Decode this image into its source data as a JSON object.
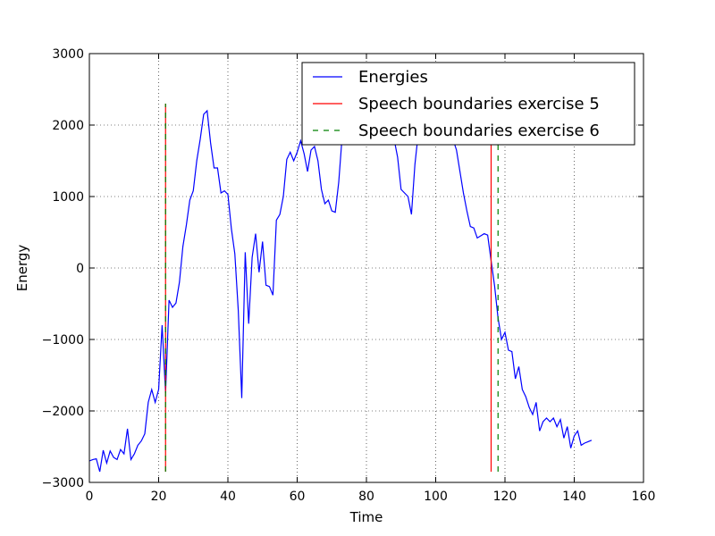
{
  "chart_data": {
    "type": "line",
    "xlabel": "Time",
    "ylabel": "Energy",
    "xlim": [
      0,
      160
    ],
    "ylim": [
      -3000,
      3000
    ],
    "xticks": [
      0,
      20,
      40,
      60,
      80,
      100,
      120,
      140,
      160
    ],
    "yticks": [
      -3000,
      -2000,
      -1000,
      0,
      1000,
      2000,
      3000
    ],
    "grid": true,
    "legend_position": "top-right",
    "colors": {
      "energies": "#0000ff",
      "boundary5": "#ff0000",
      "boundary6": "#008000"
    },
    "series": [
      {
        "name": "Energies",
        "x": [
          0,
          1,
          2,
          3,
          4,
          5,
          6,
          7,
          8,
          9,
          10,
          11,
          12,
          13,
          14,
          15,
          16,
          17,
          18,
          19,
          20,
          21,
          22,
          23,
          24,
          25,
          26,
          27,
          28,
          29,
          30,
          31,
          32,
          33,
          34,
          35,
          36,
          37,
          38,
          39,
          40,
          41,
          42,
          43,
          44,
          45,
          46,
          47,
          48,
          49,
          50,
          51,
          52,
          53,
          54,
          55,
          56,
          57,
          58,
          59,
          60,
          61,
          62,
          63,
          64,
          65,
          66,
          67,
          68,
          69,
          70,
          71,
          72,
          73,
          74,
          75,
          76,
          77,
          78,
          79,
          80,
          81,
          82,
          83,
          84,
          85,
          86,
          87,
          88,
          89,
          90,
          91,
          92,
          93,
          94,
          95,
          96,
          97,
          98,
          99,
          100,
          101,
          102,
          103,
          104,
          105,
          106,
          107,
          108,
          109,
          110,
          111,
          112,
          113,
          114,
          115,
          116,
          117,
          118,
          119,
          120,
          121,
          122,
          123,
          124,
          125,
          126,
          127,
          128,
          129,
          130,
          131,
          132,
          133,
          134,
          135,
          136,
          137,
          138,
          139,
          140,
          141,
          142,
          143,
          144,
          145
        ],
        "y": [
          -2700,
          -2680,
          -2670,
          -2850,
          -2550,
          -2730,
          -2560,
          -2650,
          -2680,
          -2540,
          -2600,
          -2250,
          -2680,
          -2600,
          -2480,
          -2420,
          -2320,
          -1880,
          -1700,
          -1880,
          -1700,
          -800,
          -1750,
          -450,
          -550,
          -490,
          -200,
          300,
          600,
          950,
          1080,
          1500,
          1800,
          2150,
          2200,
          1750,
          1400,
          1400,
          1050,
          1080,
          1030,
          550,
          200,
          -600,
          -1820,
          220,
          -780,
          150,
          480,
          -60,
          370,
          -240,
          -260,
          -380,
          670,
          750,
          1000,
          1520,
          1620,
          1500,
          1620,
          1780,
          1600,
          1350,
          1650,
          1700,
          1500,
          1100,
          900,
          950,
          800,
          780,
          1200,
          1850,
          2100,
          2250,
          2400,
          2500,
          2550,
          2560,
          2500,
          2350,
          2300,
          2250,
          2200,
          2100,
          2050,
          1950,
          1800,
          1550,
          1100,
          1050,
          1000,
          750,
          1450,
          1900,
          2200,
          2350,
          2400,
          2400,
          2350,
          2300,
          2250,
          2100,
          1950,
          1800,
          1650,
          1350,
          1050,
          800,
          580,
          560,
          420,
          450,
          480,
          460,
          100,
          -250,
          -700,
          -1000,
          -900,
          -1150,
          -1170,
          -1550,
          -1380,
          -1700,
          -1800,
          -1950,
          -2050,
          -1880,
          -2280,
          -2150,
          -2100,
          -2150,
          -2100,
          -2220,
          -2120,
          -2380,
          -2220,
          -2520,
          -2350,
          -2280,
          -2480,
          -2450,
          -2430,
          -2410
        ]
      },
      {
        "name": "Speech boundaries exercise 5",
        "x": [
          22,
          116
        ],
        "ymin": -2850,
        "ymax": 2300,
        "style": "solid"
      },
      {
        "name": "Speech boundaries exercise 6",
        "x": [
          22,
          118
        ],
        "ymin": -2850,
        "ymax": 2300,
        "style": "dashed"
      }
    ]
  }
}
